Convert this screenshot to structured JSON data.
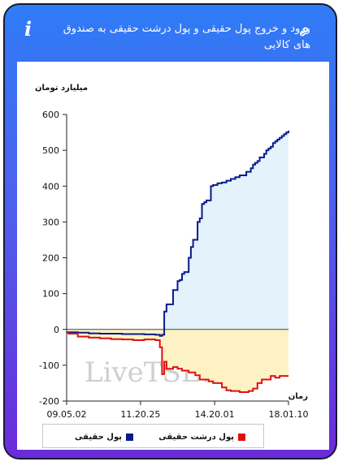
{
  "header": {
    "title": "ورود و خروج پول حقیقی و پول درشت حقیقی به صندوق های کالایی",
    "info_icon": "i",
    "link_icon": "link-icon"
  },
  "watermark": "LiveTSE.ir",
  "colors": {
    "real_money_line": "#0a1a8c",
    "real_money_fill": "#e4f2fb",
    "big_money_line": "#e01010",
    "big_money_fill": "#fcf2c4"
  },
  "chart_data": {
    "type": "line",
    "ylabel": "میلیارد تومان",
    "xlabel": "زمان",
    "ylim": [
      -200,
      600
    ],
    "yticks": [
      600,
      500,
      400,
      300,
      200,
      100,
      0,
      -100,
      -200
    ],
    "xlim": [
      0,
      100
    ],
    "xticks": [
      {
        "pos": 0,
        "label": "09.05.02"
      },
      {
        "pos": 33.3,
        "label": "11.20.25"
      },
      {
        "pos": 66.7,
        "label": "14.20.01"
      },
      {
        "pos": 100,
        "label": "18.01.10"
      }
    ],
    "legend_position": "bottom",
    "series": [
      {
        "name": "پول حقیقی",
        "x": [
          0,
          5,
          10,
          15,
          20,
          25,
          30,
          35,
          40,
          42,
          43,
          44,
          45,
          47,
          48,
          50,
          51,
          52,
          53,
          54,
          55,
          56,
          57,
          58,
          59,
          60,
          61,
          62,
          63,
          65,
          66,
          68,
          70,
          72,
          74,
          76,
          78,
          80,
          81,
          82,
          83,
          84,
          85,
          86,
          87,
          88,
          89,
          90,
          91,
          92,
          93,
          94,
          95,
          96,
          97,
          98,
          99,
          100
        ],
        "values": [
          -8,
          -9,
          -11,
          -12,
          -12,
          -13,
          -13,
          -14,
          -15,
          -18,
          -15,
          50,
          70,
          70,
          110,
          135,
          138,
          155,
          160,
          160,
          200,
          230,
          250,
          250,
          300,
          310,
          350,
          355,
          360,
          400,
          403,
          408,
          410,
          415,
          420,
          425,
          430,
          430,
          440,
          440,
          450,
          460,
          465,
          470,
          480,
          480,
          490,
          500,
          505,
          510,
          520,
          525,
          530,
          535,
          540,
          545,
          550,
          555
        ]
      },
      {
        "name": "پول درشت حقیقی",
        "x": [
          0,
          1,
          5,
          10,
          15,
          20,
          25,
          30,
          35,
          40,
          41,
          42,
          43,
          44,
          45,
          48,
          50,
          52,
          55,
          58,
          60,
          62,
          64,
          66,
          68,
          70,
          72,
          74,
          76,
          78,
          80,
          82,
          84,
          86,
          88,
          90,
          92,
          94,
          96,
          98,
          100
        ],
        "values": [
          -10,
          -12,
          -20,
          -23,
          -25,
          -27,
          -28,
          -30,
          -28,
          -30,
          -30,
          -50,
          -125,
          -90,
          -110,
          -105,
          -110,
          -115,
          -120,
          -128,
          -140,
          -140,
          -145,
          -150,
          -150,
          -162,
          -170,
          -172,
          -172,
          -175,
          -175,
          -172,
          -165,
          -150,
          -140,
          -140,
          -130,
          -135,
          -130,
          -130,
          -130
        ]
      }
    ]
  }
}
